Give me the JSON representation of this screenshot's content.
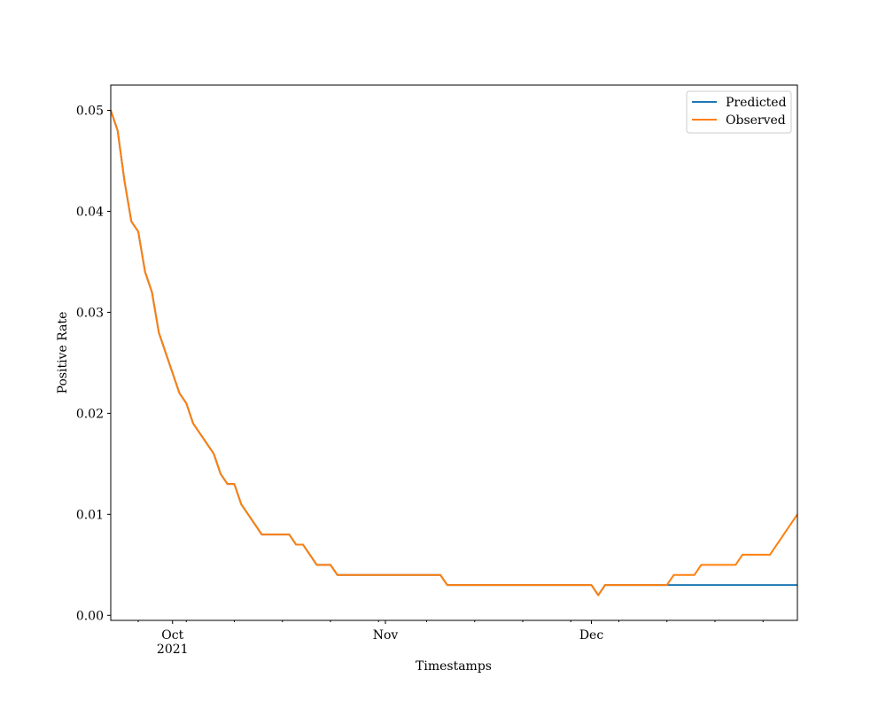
{
  "chart_data": {
    "type": "line",
    "title": "",
    "xlabel": "Timestamps",
    "ylabel": "Positive Rate",
    "x_range": [
      "2021-09-22",
      "2021-12-31"
    ],
    "ylim": [
      -0.0005,
      0.0525
    ],
    "grid": false,
    "legend_position": "top-right",
    "x_ticks": [
      {
        "date": "2021-10-01",
        "label": "Oct",
        "sublabel": "2021"
      },
      {
        "date": "2021-11-01",
        "label": "Nov",
        "sublabel": ""
      },
      {
        "date": "2021-12-01",
        "label": "Dec",
        "sublabel": ""
      }
    ],
    "y_ticks": [
      {
        "value": 0.0,
        "label": "0.00"
      },
      {
        "value": 0.01,
        "label": "0.01"
      },
      {
        "value": 0.02,
        "label": "0.02"
      },
      {
        "value": 0.03,
        "label": "0.03"
      },
      {
        "value": 0.04,
        "label": "0.04"
      },
      {
        "value": 0.05,
        "label": "0.05"
      }
    ],
    "series": [
      {
        "name": "Predicted",
        "color": "#1f77b4",
        "points": [
          [
            "2021-09-22",
            0.05
          ],
          [
            "2021-09-23",
            0.048
          ],
          [
            "2021-09-24",
            0.043
          ],
          [
            "2021-09-25",
            0.039
          ],
          [
            "2021-09-26",
            0.038
          ],
          [
            "2021-09-27",
            0.034
          ],
          [
            "2021-09-28",
            0.032
          ],
          [
            "2021-09-29",
            0.028
          ],
          [
            "2021-09-30",
            0.026
          ],
          [
            "2021-10-01",
            0.024
          ],
          [
            "2021-10-02",
            0.022
          ],
          [
            "2021-10-03",
            0.021
          ],
          [
            "2021-10-04",
            0.019
          ],
          [
            "2021-10-05",
            0.018
          ],
          [
            "2021-10-06",
            0.017
          ],
          [
            "2021-10-07",
            0.016
          ],
          [
            "2021-10-08",
            0.014
          ],
          [
            "2021-10-09",
            0.013
          ],
          [
            "2021-10-10",
            0.013
          ],
          [
            "2021-10-11",
            0.011
          ],
          [
            "2021-10-12",
            0.01
          ],
          [
            "2021-10-13",
            0.009
          ],
          [
            "2021-10-14",
            0.008
          ],
          [
            "2021-10-15",
            0.008
          ],
          [
            "2021-10-16",
            0.008
          ],
          [
            "2021-10-17",
            0.008
          ],
          [
            "2021-10-18",
            0.008
          ],
          [
            "2021-10-19",
            0.007
          ],
          [
            "2021-10-20",
            0.007
          ],
          [
            "2021-10-21",
            0.006
          ],
          [
            "2021-10-22",
            0.005
          ],
          [
            "2021-10-23",
            0.005
          ],
          [
            "2021-10-24",
            0.005
          ],
          [
            "2021-10-25",
            0.004
          ],
          [
            "2021-10-26",
            0.004
          ],
          [
            "2021-10-27",
            0.004
          ],
          [
            "2021-10-28",
            0.004
          ],
          [
            "2021-10-29",
            0.004
          ],
          [
            "2021-10-30",
            0.004
          ],
          [
            "2021-10-31",
            0.004
          ],
          [
            "2021-11-01",
            0.004
          ],
          [
            "2021-11-02",
            0.004
          ],
          [
            "2021-11-03",
            0.004
          ],
          [
            "2021-11-04",
            0.004
          ],
          [
            "2021-11-05",
            0.004
          ],
          [
            "2021-11-06",
            0.004
          ],
          [
            "2021-11-07",
            0.004
          ],
          [
            "2021-11-08",
            0.004
          ],
          [
            "2021-11-09",
            0.004
          ],
          [
            "2021-11-10",
            0.003
          ],
          [
            "2021-11-11",
            0.003
          ],
          [
            "2021-11-12",
            0.003
          ],
          [
            "2021-11-13",
            0.003
          ],
          [
            "2021-11-14",
            0.003
          ],
          [
            "2021-11-15",
            0.003
          ],
          [
            "2021-11-16",
            0.003
          ],
          [
            "2021-11-17",
            0.003
          ],
          [
            "2021-11-18",
            0.003
          ],
          [
            "2021-11-19",
            0.003
          ],
          [
            "2021-11-20",
            0.003
          ],
          [
            "2021-11-21",
            0.003
          ],
          [
            "2021-11-22",
            0.003
          ],
          [
            "2021-11-23",
            0.003
          ],
          [
            "2021-11-24",
            0.003
          ],
          [
            "2021-11-25",
            0.003
          ],
          [
            "2021-11-26",
            0.003
          ],
          [
            "2021-11-27",
            0.003
          ],
          [
            "2021-11-28",
            0.003
          ],
          [
            "2021-11-29",
            0.003
          ],
          [
            "2021-11-30",
            0.003
          ],
          [
            "2021-12-01",
            0.003
          ],
          [
            "2021-12-02",
            0.002
          ],
          [
            "2021-12-03",
            0.003
          ],
          [
            "2021-12-04",
            0.003
          ],
          [
            "2021-12-05",
            0.003
          ],
          [
            "2021-12-06",
            0.003
          ],
          [
            "2021-12-07",
            0.003
          ],
          [
            "2021-12-08",
            0.003
          ],
          [
            "2021-12-09",
            0.003
          ],
          [
            "2021-12-10",
            0.003
          ],
          [
            "2021-12-11",
            0.003
          ],
          [
            "2021-12-12",
            0.003
          ],
          [
            "2021-12-31",
            0.003
          ]
        ]
      },
      {
        "name": "Observed",
        "color": "#ff7f0e",
        "points": [
          [
            "2021-09-22",
            0.05
          ],
          [
            "2021-09-23",
            0.048
          ],
          [
            "2021-09-24",
            0.043
          ],
          [
            "2021-09-25",
            0.039
          ],
          [
            "2021-09-26",
            0.038
          ],
          [
            "2021-09-27",
            0.034
          ],
          [
            "2021-09-28",
            0.032
          ],
          [
            "2021-09-29",
            0.028
          ],
          [
            "2021-09-30",
            0.026
          ],
          [
            "2021-10-01",
            0.024
          ],
          [
            "2021-10-02",
            0.022
          ],
          [
            "2021-10-03",
            0.021
          ],
          [
            "2021-10-04",
            0.019
          ],
          [
            "2021-10-05",
            0.018
          ],
          [
            "2021-10-06",
            0.017
          ],
          [
            "2021-10-07",
            0.016
          ],
          [
            "2021-10-08",
            0.014
          ],
          [
            "2021-10-09",
            0.013
          ],
          [
            "2021-10-10",
            0.013
          ],
          [
            "2021-10-11",
            0.011
          ],
          [
            "2021-10-12",
            0.01
          ],
          [
            "2021-10-13",
            0.009
          ],
          [
            "2021-10-14",
            0.008
          ],
          [
            "2021-10-15",
            0.008
          ],
          [
            "2021-10-16",
            0.008
          ],
          [
            "2021-10-17",
            0.008
          ],
          [
            "2021-10-18",
            0.008
          ],
          [
            "2021-10-19",
            0.007
          ],
          [
            "2021-10-20",
            0.007
          ],
          [
            "2021-10-21",
            0.006
          ],
          [
            "2021-10-22",
            0.005
          ],
          [
            "2021-10-23",
            0.005
          ],
          [
            "2021-10-24",
            0.005
          ],
          [
            "2021-10-25",
            0.004
          ],
          [
            "2021-10-26",
            0.004
          ],
          [
            "2021-10-27",
            0.004
          ],
          [
            "2021-10-28",
            0.004
          ],
          [
            "2021-10-29",
            0.004
          ],
          [
            "2021-10-30",
            0.004
          ],
          [
            "2021-10-31",
            0.004
          ],
          [
            "2021-11-01",
            0.004
          ],
          [
            "2021-11-02",
            0.004
          ],
          [
            "2021-11-03",
            0.004
          ],
          [
            "2021-11-04",
            0.004
          ],
          [
            "2021-11-05",
            0.004
          ],
          [
            "2021-11-06",
            0.004
          ],
          [
            "2021-11-07",
            0.004
          ],
          [
            "2021-11-08",
            0.004
          ],
          [
            "2021-11-09",
            0.004
          ],
          [
            "2021-11-10",
            0.003
          ],
          [
            "2021-11-11",
            0.003
          ],
          [
            "2021-11-12",
            0.003
          ],
          [
            "2021-11-13",
            0.003
          ],
          [
            "2021-11-14",
            0.003
          ],
          [
            "2021-11-15",
            0.003
          ],
          [
            "2021-11-16",
            0.003
          ],
          [
            "2021-11-17",
            0.003
          ],
          [
            "2021-11-18",
            0.003
          ],
          [
            "2021-11-19",
            0.003
          ],
          [
            "2021-11-20",
            0.003
          ],
          [
            "2021-11-21",
            0.003
          ],
          [
            "2021-11-22",
            0.003
          ],
          [
            "2021-11-23",
            0.003
          ],
          [
            "2021-11-24",
            0.003
          ],
          [
            "2021-11-25",
            0.003
          ],
          [
            "2021-11-26",
            0.003
          ],
          [
            "2021-11-27",
            0.003
          ],
          [
            "2021-11-28",
            0.003
          ],
          [
            "2021-11-29",
            0.003
          ],
          [
            "2021-11-30",
            0.003
          ],
          [
            "2021-12-01",
            0.003
          ],
          [
            "2021-12-02",
            0.002
          ],
          [
            "2021-12-03",
            0.003
          ],
          [
            "2021-12-04",
            0.003
          ],
          [
            "2021-12-05",
            0.003
          ],
          [
            "2021-12-06",
            0.003
          ],
          [
            "2021-12-07",
            0.003
          ],
          [
            "2021-12-08",
            0.003
          ],
          [
            "2021-12-09",
            0.003
          ],
          [
            "2021-12-10",
            0.003
          ],
          [
            "2021-12-11",
            0.003
          ],
          [
            "2021-12-12",
            0.003
          ],
          [
            "2021-12-13",
            0.004
          ],
          [
            "2021-12-14",
            0.004
          ],
          [
            "2021-12-15",
            0.004
          ],
          [
            "2021-12-16",
            0.004
          ],
          [
            "2021-12-17",
            0.005
          ],
          [
            "2021-12-18",
            0.005
          ],
          [
            "2021-12-19",
            0.005
          ],
          [
            "2021-12-20",
            0.005
          ],
          [
            "2021-12-21",
            0.005
          ],
          [
            "2021-12-22",
            0.005
          ],
          [
            "2021-12-23",
            0.006
          ],
          [
            "2021-12-24",
            0.006
          ],
          [
            "2021-12-25",
            0.006
          ],
          [
            "2021-12-26",
            0.006
          ],
          [
            "2021-12-27",
            0.006
          ],
          [
            "2021-12-31",
            0.01
          ]
        ]
      }
    ]
  }
}
